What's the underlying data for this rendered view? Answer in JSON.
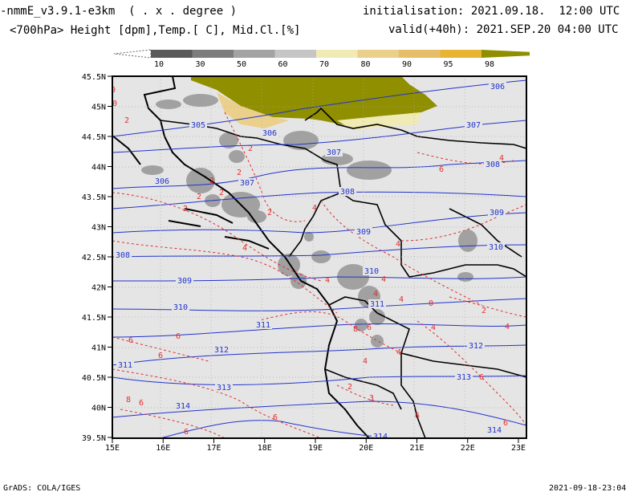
{
  "header": {
    "model": "-nmmE_v3.9.1-e3km",
    "units_note": "( . x . degree )",
    "fields": "<700hPa> Height [dpm],Temp.[ C], Mid.Cl.[%]",
    "init_label": "initialisation:",
    "init_value": "2021.09.18.  12:00 UTC",
    "valid_label": "valid(+40h):",
    "valid_value": "2021.SEP.20 04:00 UTC"
  },
  "colorbar": {
    "labels": [
      "10",
      "30",
      "50",
      "60",
      "70",
      "80",
      "90",
      "95",
      "98"
    ],
    "colors": [
      "#5a5a5a",
      "#7d7d7d",
      "#a3a3a3",
      "#c5c5c5",
      "#f0eab4",
      "#ead08a",
      "#e6be68",
      "#e7b433",
      "#8f8f00"
    ]
  },
  "map": {
    "lat_labels": [
      "45.5N",
      "45N",
      "44.5N",
      "44N",
      "43.5N",
      "43N",
      "42.5N",
      "42N",
      "41.5N",
      "41N",
      "40.5N",
      "40N",
      "39.5N"
    ],
    "lon_labels": [
      "15E",
      "16E",
      "17E",
      "18E",
      "19E",
      "20E",
      "21E",
      "22E",
      "23E"
    ],
    "height_labels": [
      "306",
      "305",
      "306",
      "307",
      "307",
      "306",
      "307",
      "308",
      "308",
      "309",
      "309",
      "310",
      "308",
      "309",
      "310",
      "311",
      "310",
      "311",
      "312",
      "311",
      "312",
      "313",
      "313",
      "314",
      "314",
      "314"
    ],
    "temp_labels": [
      "0",
      "0",
      "2",
      "2",
      "2",
      "2",
      "2",
      "2",
      "2",
      "2",
      "4",
      "4",
      "4",
      "4",
      "4",
      "4",
      "4",
      "6",
      "6",
      "6",
      "6",
      "6",
      "6",
      "8",
      "8",
      "4",
      "2",
      "0",
      "4",
      "2",
      "4",
      "4",
      "3",
      "6",
      "4",
      "6",
      "6",
      "6",
      "6"
    ]
  },
  "footer": {
    "left": "GrADS: COLA/IGES",
    "right": "2021-09-18-23:04"
  }
}
